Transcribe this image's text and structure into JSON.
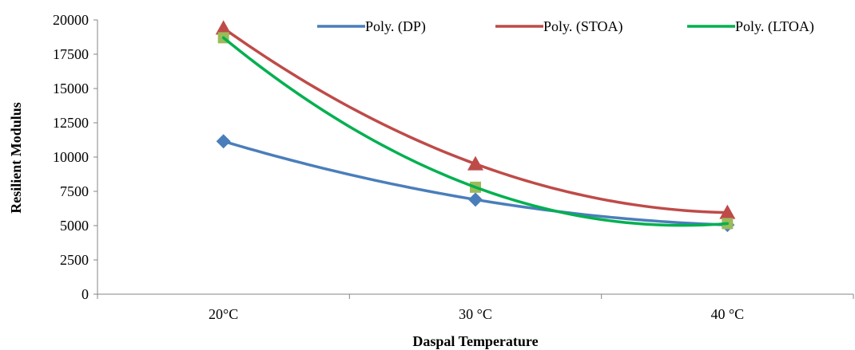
{
  "chart_data": {
    "type": "line",
    "title": "",
    "xlabel": "Daspal Temperature",
    "ylabel": "Resilient Modulus",
    "categories": [
      "20°C",
      "30 °C",
      "40 °C"
    ],
    "ylim": [
      0,
      20000
    ],
    "yticks": [
      0,
      2500,
      5000,
      7500,
      10000,
      12500,
      15000,
      17500,
      20000
    ],
    "legend_position": "top",
    "grid": false,
    "series": [
      {
        "name": "Poly. (DP)",
        "marker": "diamond",
        "color": "#4a7ebb",
        "marker_color": "#4a7ebb",
        "values": [
          11150,
          6900,
          5050
        ]
      },
      {
        "name": "Poly. (STOA)",
        "marker": "triangle",
        "color": "#be4b48",
        "marker_color": "#be4b48",
        "values": [
          19400,
          9500,
          5950
        ]
      },
      {
        "name": "Poly. (LTOA)",
        "marker": "square",
        "color": "#00b050",
        "marker_color": "#9bbb59",
        "values": [
          18700,
          7800,
          5150
        ]
      }
    ]
  }
}
